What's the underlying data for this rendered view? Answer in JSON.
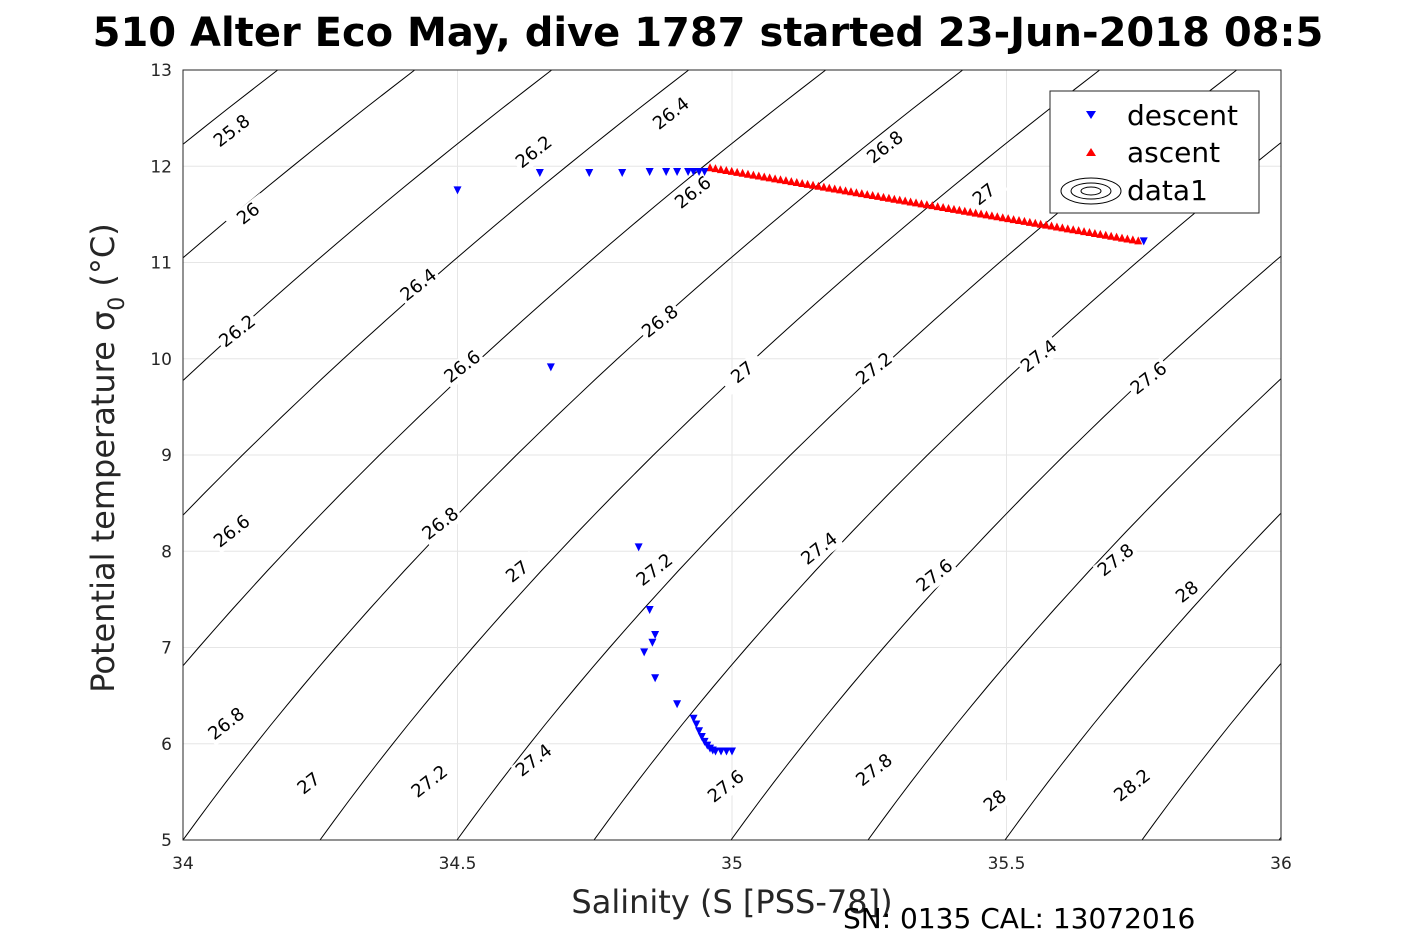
{
  "chart_data": {
    "type": "scatter",
    "title": "510 Alter Eco May, dive 1787 started 23-Jun-2018 08:5",
    "xlabel": "Salinity (S [PSS-78])",
    "ylabel": "Potential temperature σ",
    "ylabel_sub": "0",
    "ylabel_unit": " (°C)",
    "xlim": [
      34,
      36
    ],
    "ylim": [
      5,
      13
    ],
    "xticks": [
      "34",
      "34.5",
      "35",
      "35.5",
      "36"
    ],
    "yticks": [
      "5",
      "6",
      "7",
      "8",
      "9",
      "10",
      "11",
      "12",
      "13"
    ],
    "grid": true,
    "legend_position": "top-right",
    "series": [
      {
        "name": "descent",
        "marker": "triangle-down",
        "color": "#0000ff",
        "points": [
          [
            34.5,
            11.75
          ],
          [
            34.65,
            11.93
          ],
          [
            34.74,
            11.93
          ],
          [
            34.8,
            11.93
          ],
          [
            34.85,
            11.94
          ],
          [
            34.88,
            11.94
          ],
          [
            34.9,
            11.94
          ],
          [
            34.92,
            11.94
          ],
          [
            34.93,
            11.94
          ],
          [
            34.94,
            11.94
          ],
          [
            34.95,
            11.94
          ],
          [
            34.67,
            9.91
          ],
          [
            34.83,
            8.04
          ],
          [
            34.85,
            7.39
          ],
          [
            34.86,
            7.13
          ],
          [
            34.855,
            7.05
          ],
          [
            34.84,
            6.95
          ],
          [
            34.86,
            6.68
          ],
          [
            34.9,
            6.41
          ],
          [
            34.93,
            6.26
          ],
          [
            34.935,
            6.2
          ],
          [
            34.94,
            6.13
          ],
          [
            34.945,
            6.07
          ],
          [
            34.95,
            6.02
          ],
          [
            34.955,
            5.98
          ],
          [
            34.96,
            5.95
          ],
          [
            34.965,
            5.93
          ],
          [
            34.97,
            5.92
          ],
          [
            34.98,
            5.92
          ],
          [
            34.99,
            5.92
          ],
          [
            35.0,
            5.92
          ],
          [
            35.75,
            11.22
          ]
        ]
      },
      {
        "name": "ascent",
        "marker": "triangle-up",
        "color": "#ff0000",
        "line_from": [
          34.96,
          11.99
        ],
        "line_to": [
          35.74,
          11.23
        ],
        "count": 80
      },
      {
        "name": "data1",
        "marker": "contour"
      }
    ],
    "contour_labels": [
      {
        "x": 34.09,
        "y": 12.36,
        "t": "25.8"
      },
      {
        "x": 34.12,
        "y": 11.5,
        "t": "26"
      },
      {
        "x": 34.1,
        "y": 10.28,
        "t": "26.2"
      },
      {
        "x": 34.09,
        "y": 8.2,
        "t": "26.6"
      },
      {
        "x": 34.08,
        "y": 6.2,
        "t": "26.8"
      },
      {
        "x": 34.23,
        "y": 5.58,
        "t": "27"
      },
      {
        "x": 34.45,
        "y": 5.6,
        "t": "27.2"
      },
      {
        "x": 34.64,
        "y": 5.82,
        "t": "27.4"
      },
      {
        "x": 34.99,
        "y": 5.55,
        "t": "27.6"
      },
      {
        "x": 35.26,
        "y": 5.72,
        "t": "27.8"
      },
      {
        "x": 35.48,
        "y": 5.4,
        "t": "28"
      },
      {
        "x": 35.73,
        "y": 5.56,
        "t": "28.2"
      },
      {
        "x": 34.43,
        "y": 10.76,
        "t": "26.4"
      },
      {
        "x": 34.51,
        "y": 9.91,
        "t": "26.6"
      },
      {
        "x": 34.47,
        "y": 8.28,
        "t": "26.8"
      },
      {
        "x": 34.61,
        "y": 7.78,
        "t": "27"
      },
      {
        "x": 34.86,
        "y": 7.8,
        "t": "27.2"
      },
      {
        "x": 34.64,
        "y": 12.14,
        "t": "26.2"
      },
      {
        "x": 34.89,
        "y": 12.54,
        "t": "26.4"
      },
      {
        "x": 34.93,
        "y": 11.72,
        "t": "26.6"
      },
      {
        "x": 34.87,
        "y": 10.38,
        "t": "26.8"
      },
      {
        "x": 35.02,
        "y": 9.85,
        "t": "27"
      },
      {
        "x": 35.16,
        "y": 8.02,
        "t": "27.4"
      },
      {
        "x": 35.37,
        "y": 7.74,
        "t": "27.6"
      },
      {
        "x": 35.7,
        "y": 7.9,
        "t": "27.8"
      },
      {
        "x": 35.83,
        "y": 7.57,
        "t": "28"
      },
      {
        "x": 35.28,
        "y": 12.19,
        "t": "26.8"
      },
      {
        "x": 35.46,
        "y": 11.7,
        "t": "27"
      },
      {
        "x": 35.26,
        "y": 9.89,
        "t": "27.2"
      },
      {
        "x": 35.56,
        "y": 10.02,
        "t": "27.4"
      },
      {
        "x": 35.76,
        "y": 9.79,
        "t": "27.6"
      }
    ],
    "footer": "SN: 0135  CAL: 13072016"
  }
}
